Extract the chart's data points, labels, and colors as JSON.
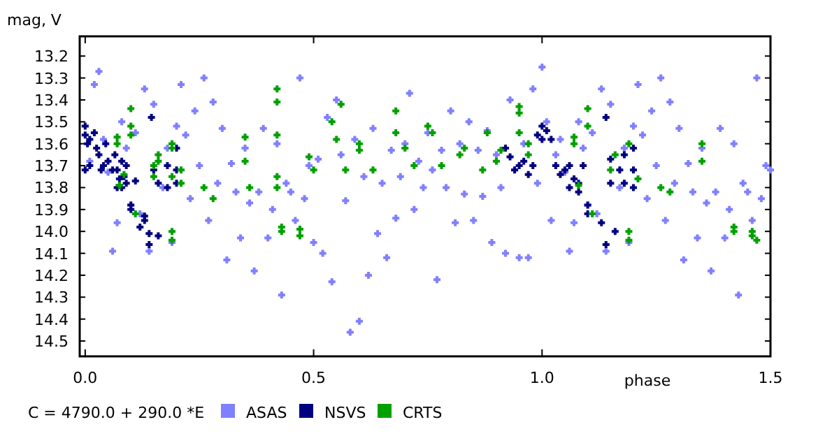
{
  "chart_data": {
    "type": "scatter",
    "xlabel": "phase",
    "ylabel": "mag, V",
    "xlim": [
      -0.012,
      1.5
    ],
    "ylim": [
      14.57,
      13.11
    ],
    "xticks": [
      {
        "value": 0,
        "label": "0.0"
      },
      0.5,
      {
        "value": 1,
        "label": "1.0"
      },
      1.5
    ],
    "yticks": [
      13.2,
      13.3,
      13.4,
      13.5,
      13.6,
      13.7,
      13.8,
      13.9,
      {
        "value": 14,
        "label": "14.0"
      },
      14.1,
      14.2,
      14.3,
      14.4,
      14.5
    ],
    "grid": false,
    "legend": "bottom",
    "marker": "cross",
    "annotations": [
      "C = 4790.0 + 290.0 *E"
    ],
    "series": [
      {
        "name": "ASAS",
        "color": "#8080ff",
        "x": [
          0.01,
          0.02,
          0.03,
          0.04,
          0.05,
          0.06,
          0.07,
          0.08,
          0.09,
          0.1,
          0.11,
          0.12,
          0.13,
          0.14,
          0.15,
          0.17,
          0.18,
          0.19,
          0.2,
          0.21,
          0.22,
          0.23,
          0.24,
          0.25,
          0.26,
          0.27,
          0.28,
          0.29,
          0.3,
          0.31,
          0.32,
          0.33,
          0.34,
          0.35,
          0.36,
          0.37,
          0.38,
          0.39,
          0.4,
          0.41,
          0.42,
          0.43,
          0.44,
          0.45,
          0.46,
          0.47,
          0.48,
          0.49,
          0.5,
          0.51,
          0.52,
          0.53,
          0.54,
          0.55,
          0.56,
          0.57,
          0.58,
          0.59,
          0.6,
          0.61,
          0.62,
          0.63,
          0.64,
          0.65,
          0.66,
          0.67,
          0.68,
          0.69,
          0.7,
          0.71,
          0.72,
          0.73,
          0.74,
          0.75,
          0.76,
          0.77,
          0.78,
          0.79,
          0.8,
          0.81,
          0.82,
          0.83,
          0.84,
          0.85,
          0.86,
          0.87,
          0.88,
          0.89,
          0.9,
          0.91,
          0.92,
          0.93,
          0.94,
          0.95,
          0.96,
          0.97,
          0.98,
          0.99,
          1.0,
          1.01,
          1.02,
          1.03,
          1.04,
          1.05,
          1.06,
          1.07,
          1.08,
          1.09,
          1.1,
          1.11,
          1.12,
          1.13,
          1.14,
          1.15,
          1.17,
          1.18,
          1.19,
          1.2,
          1.21,
          1.22,
          1.23,
          1.24,
          1.25,
          1.26,
          1.27,
          1.28,
          1.29,
          1.3,
          1.31,
          1.32,
          1.33,
          1.34,
          1.35,
          1.36,
          1.37,
          1.38,
          1.39,
          1.4,
          1.41,
          1.42,
          1.43,
          1.44,
          1.45,
          1.46,
          1.47,
          1.48,
          1.49,
          1.5
        ],
        "values": [
          13.68,
          13.33,
          13.27,
          13.58,
          13.73,
          14.09,
          13.96,
          13.5,
          13.62,
          13.88,
          13.55,
          13.92,
          13.35,
          14.09,
          13.42,
          13.8,
          13.62,
          14.05,
          13.52,
          13.33,
          13.56,
          13.85,
          13.45,
          13.7,
          13.3,
          13.95,
          13.41,
          13.78,
          13.53,
          14.13,
          13.69,
          13.82,
          14.03,
          13.62,
          13.87,
          14.18,
          13.82,
          13.53,
          14.03,
          13.9,
          13.6,
          14.29,
          13.78,
          13.82,
          13.95,
          13.3,
          13.85,
          13.7,
          14.05,
          13.67,
          14.1,
          13.48,
          14.23,
          13.4,
          13.65,
          13.86,
          14.46,
          13.58,
          14.41,
          13.75,
          14.2,
          13.53,
          14.01,
          13.78,
          14.12,
          13.63,
          13.94,
          13.75,
          13.6,
          13.37,
          13.9,
          13.68,
          13.8,
          13.55,
          13.72,
          14.22,
          13.63,
          13.8,
          13.45,
          13.96,
          13.6,
          13.83,
          13.5,
          13.95,
          13.63,
          13.84,
          13.54,
          14.05,
          13.65,
          13.8,
          14.1,
          13.4,
          13.72,
          14.12,
          13.6,
          14.12,
          13.35,
          13.78,
          13.25,
          13.5,
          13.95,
          13.65,
          13.58,
          13.73,
          14.09,
          13.96,
          13.5,
          13.62,
          13.88,
          13.55,
          13.92,
          13.35,
          14.09,
          13.42,
          13.8,
          13.62,
          14.05,
          13.52,
          13.33,
          13.56,
          13.85,
          13.45,
          13.7,
          13.3,
          13.95,
          13.41,
          13.78,
          13.53,
          14.13,
          13.69,
          13.82,
          14.03,
          13.62,
          13.87,
          14.18,
          13.82,
          13.53,
          14.03,
          13.9,
          13.6,
          14.29,
          13.78,
          13.82,
          13.95,
          13.3,
          13.85,
          13.7,
          13.72
        ]
      },
      {
        "name": "NSVS",
        "color": "#000080",
        "x": [
          0,
          0,
          0.005,
          0.01,
          0,
          0.01,
          0.02,
          0.025,
          0.03,
          0.035,
          0.04,
          0.045,
          0.05,
          0.06,
          0.065,
          0.07,
          0.07,
          0.075,
          0.08,
          0.08,
          0.085,
          0.09,
          0.09,
          0.1,
          0.1,
          0.11,
          0.13,
          0.13,
          0.145,
          0.15,
          0.16,
          0.18,
          0.18,
          0.2,
          0.2,
          0.2,
          0.12,
          0.14,
          0.14,
          0.16,
          0.92,
          0.93,
          0.94,
          0.95,
          0.96,
          0.97,
          0.98,
          0.99,
          1.0,
          1.0,
          1.01,
          1.02,
          1.03,
          1.04,
          1.05,
          1.06,
          1.06,
          1.07,
          1.08,
          1.08,
          1.09,
          1.1,
          1.1,
          1.13,
          1.14,
          1.15,
          1.15,
          1.16,
          1.17,
          1.18,
          1.18,
          1.2,
          1.2,
          1.2,
          1.14
        ],
        "values": [
          13.52,
          13.56,
          13.6,
          13.58,
          13.72,
          13.7,
          13.55,
          13.62,
          13.65,
          13.72,
          13.7,
          13.6,
          13.68,
          13.72,
          13.65,
          13.8,
          13.72,
          13.76,
          13.68,
          13.8,
          13.75,
          13.7,
          13.78,
          13.88,
          13.9,
          13.77,
          13.93,
          13.95,
          13.48,
          13.72,
          13.78,
          13.7,
          13.8,
          13.62,
          13.72,
          13.78,
          13.98,
          14.01,
          14.06,
          14.02,
          13.62,
          13.66,
          13.72,
          13.7,
          13.68,
          13.74,
          13.7,
          13.56,
          13.52,
          13.58,
          13.54,
          13.58,
          13.7,
          13.74,
          13.72,
          13.8,
          13.7,
          13.76,
          13.78,
          13.82,
          13.7,
          13.88,
          13.92,
          13.96,
          13.48,
          13.67,
          13.78,
          14.0,
          13.72,
          13.65,
          13.78,
          13.62,
          13.72,
          13.8,
          14.06
        ]
      },
      {
        "name": "CRTS",
        "color": "#00a000",
        "x": [
          0.07,
          0.07,
          0.075,
          0.085,
          0.1,
          0.1,
          0.1,
          0.11,
          0.15,
          0.15,
          0.16,
          0.16,
          0.19,
          0.19,
          0.19,
          0.19,
          0.19,
          0.21,
          0.21,
          0.26,
          0.28,
          0.35,
          0.35,
          0.36,
          0.42,
          0.42,
          0.42,
          0.42,
          0.42,
          0.43,
          0.43,
          0.47,
          0.47,
          0.49,
          0.5,
          0.54,
          0.55,
          0.56,
          0.57,
          0.6,
          0.6,
          0.63,
          0.68,
          0.68,
          0.7,
          0.72,
          0.75,
          0.76,
          0.78,
          0.82,
          0.83,
          0.87,
          0.88,
          0.9,
          0.91,
          0.95,
          0.95,
          0.95,
          0.97,
          0.97,
          1.07,
          1.07,
          1.08,
          1.1,
          1.1,
          1.11,
          1.15,
          1.16,
          1.19,
          1.19,
          1.19,
          1.21,
          1.26,
          1.28,
          1.35,
          1.35,
          1.42,
          1.42,
          1.46,
          1.46,
          1.47
        ],
        "values": [
          13.57,
          13.6,
          13.79,
          13.74,
          13.44,
          13.52,
          13.56,
          13.92,
          13.7,
          13.75,
          13.65,
          13.68,
          13.6,
          13.62,
          13.75,
          14.0,
          14.04,
          13.78,
          13.72,
          13.8,
          13.85,
          13.57,
          13.68,
          13.8,
          13.35,
          13.41,
          13.56,
          13.75,
          13.8,
          13.98,
          14.0,
          13.99,
          14.02,
          13.66,
          13.72,
          13.5,
          13.58,
          13.42,
          13.72,
          13.6,
          13.63,
          13.72,
          13.45,
          13.55,
          13.62,
          13.7,
          13.52,
          13.55,
          13.7,
          13.65,
          13.62,
          13.72,
          13.55,
          13.68,
          13.63,
          13.43,
          13.46,
          13.55,
          13.6,
          13.65,
          13.57,
          13.6,
          13.79,
          13.44,
          13.52,
          13.92,
          13.72,
          13.65,
          13.6,
          14.0,
          14.04,
          13.76,
          13.8,
          13.82,
          13.6,
          13.68,
          13.98,
          14.0,
          14.0,
          14.02,
          14.04
        ]
      }
    ]
  }
}
